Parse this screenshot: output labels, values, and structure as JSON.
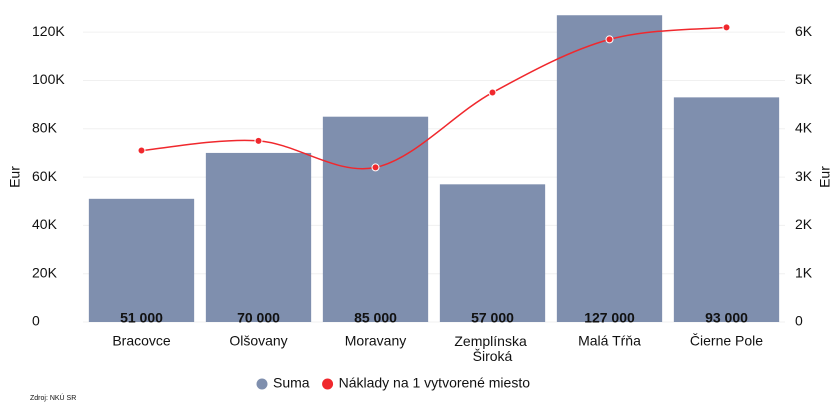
{
  "chart_data": {
    "type": "bar+line",
    "categories": [
      "Bracovce",
      "Olšovany",
      "Moravany",
      "Zemplínska Široká",
      "Malá Tŕňa",
      "Čierne Pole"
    ],
    "series": [
      {
        "name": "Suma",
        "type": "bar",
        "color": "#7f8fae",
        "values": [
          51000,
          70000,
          85000,
          57000,
          127000,
          93000
        ],
        "value_labels": [
          "51 000",
          "70 000",
          "85 000",
          "57 000",
          "127 000",
          "93 000"
        ]
      },
      {
        "name": "Náklady na 1 vytvorené miesto",
        "type": "line",
        "axis": "y2",
        "color": "#f0282d",
        "values": [
          3550,
          3750,
          3200,
          4750,
          5850,
          6100
        ]
      }
    ],
    "y_label": "Eur",
    "y2_label": "Eur",
    "ylim": [
      0,
      130000
    ],
    "yticks": [
      0,
      {
        "value": 20000,
        "label": "20K"
      },
      {
        "value": 40000,
        "label": "40K"
      },
      {
        "value": 60000,
        "label": "60K"
      },
      {
        "value": 80000,
        "label": "80K"
      },
      {
        "value": 100000,
        "label": "100K"
      },
      {
        "value": 120000,
        "label": "120K"
      }
    ],
    "y2lim": [
      0,
      6500
    ],
    "y2ticks": [
      0,
      {
        "value": 1000,
        "label": "1K"
      },
      {
        "value": 2000,
        "label": "2K"
      },
      {
        "value": 3000,
        "label": "3K"
      },
      {
        "value": 4000,
        "label": "4K"
      },
      {
        "value": 5000,
        "label": "5K"
      },
      {
        "value": 6000,
        "label": "6K"
      }
    ],
    "grid": true,
    "legend": "bottom",
    "source": "Zdroj: NKÚ SR"
  }
}
